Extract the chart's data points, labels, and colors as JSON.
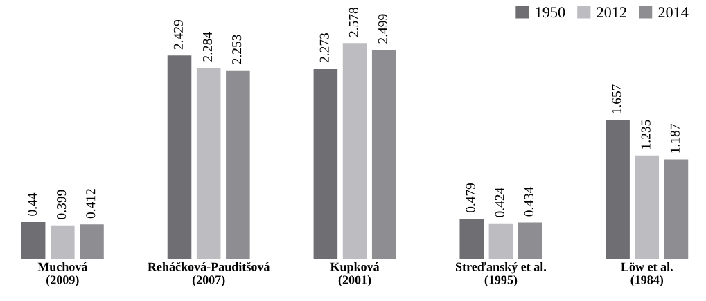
{
  "chart_data": {
    "type": "bar",
    "categories": [
      "Muchová\n(2009)",
      "Reháčková-Pauditšová\n(2007)",
      "Kupková\n(2001)",
      "Streďanský et al.\n(1995)",
      "Löw et al.\n(1984)"
    ],
    "series": [
      {
        "name": "1950",
        "color": "#6f6f73",
        "values": [
          0.44,
          2.429,
          2.273,
          0.479,
          1.657
        ]
      },
      {
        "name": "2012",
        "color": "#bdbdc1",
        "values": [
          0.399,
          2.284,
          2.578,
          0.424,
          1.235
        ]
      },
      {
        "name": "2014",
        "color": "#8e8e92",
        "values": [
          0.412,
          2.253,
          2.499,
          0.434,
          1.187
        ]
      }
    ],
    "data_labels": true,
    "legend": "top right",
    "grid": false
  }
}
